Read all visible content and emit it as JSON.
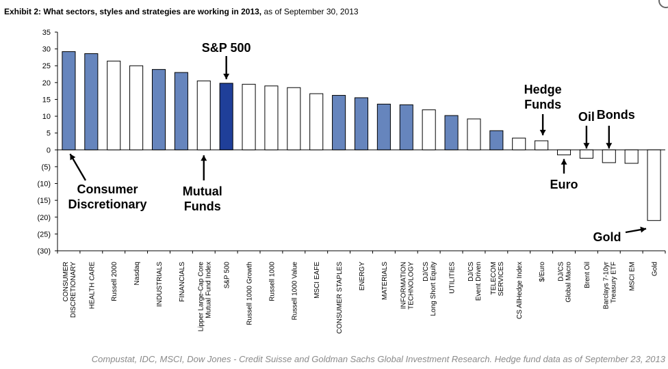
{
  "title": {
    "bold": "Exhibit 2: What sectors, styles and strategies are working in 2013,",
    "normal": " as of September 30, 2013"
  },
  "source": "Compustat, IDC, MSCI, Dow Jones - Credit Suisse and Goldman Sachs Global Investment Research. Hedge fund data as of September 23, 2013",
  "chart_data": {
    "type": "bar",
    "ylim": [
      -30,
      35
    ],
    "yticks": [
      35,
      30,
      25,
      20,
      15,
      10,
      5,
      0,
      -5,
      -10,
      -15,
      -20,
      -25,
      -30
    ],
    "ytick_labels": [
      "35",
      "30",
      "25",
      "20",
      "15",
      "10",
      "5",
      "0",
      "(5)",
      "(10)",
      "(15)",
      "(20)",
      "(25)",
      "(30)"
    ],
    "grid": false,
    "colors": {
      "sector": "#6685bd",
      "sp500": "#1f3f99",
      "other": "#ffffff",
      "stroke": "#000000"
    },
    "categories": [
      "CONSUMER\nDISCRETIONARY",
      "HEALTH CARE",
      "Russell 2000",
      "Nasdaq",
      "INDUSTRIALS",
      "FINANCIALS",
      "Lipper Large-Cap Core\nMutual Fund Index",
      "S&P 500",
      "Russell 1000 Growth",
      "Russell 1000",
      "Russell 1000 Value",
      "MSCI EAFE",
      "CONSUMER STAPLES",
      "ENERGY",
      "MATERIALS",
      "INFORMATION\nTECHNOLOGY",
      "DJ/CS\nLong Short Equity",
      "UTILITIES",
      "DJ/CS\nEvent Driven",
      "TELECOM\nSERVICES",
      "CS AllHedge Index",
      "$/Euro",
      "DJ/CS\nGlobal Macro",
      "Brent Oil",
      "Barclays 7-10yr\nTreasury ETF",
      "MSCI EM",
      "Gold"
    ],
    "values": [
      29.2,
      28.6,
      26.4,
      25.0,
      23.9,
      23.0,
      20.5,
      19.8,
      19.5,
      19.0,
      18.5,
      16.7,
      16.2,
      15.5,
      13.6,
      13.4,
      11.9,
      10.2,
      9.2,
      5.7,
      3.5,
      2.7,
      -1.5,
      -2.5,
      -3.8,
      -4.0,
      -21.0
    ],
    "kinds": [
      "sector",
      "sector",
      "other",
      "other",
      "sector",
      "sector",
      "other",
      "sp500",
      "other",
      "other",
      "other",
      "other",
      "sector",
      "sector",
      "sector",
      "sector",
      "other",
      "sector",
      "other",
      "sector",
      "other",
      "other",
      "other",
      "other",
      "other",
      "other",
      "other"
    ],
    "annotations": [
      {
        "lines": [
          "S&P 500"
        ],
        "target": 7
      },
      {
        "lines": [
          "Consumer",
          "Discretionary"
        ],
        "target": 0
      },
      {
        "lines": [
          "Mutual",
          "Funds"
        ],
        "target": 6
      },
      {
        "lines": [
          "Hedge",
          "Funds"
        ],
        "target": 21
      },
      {
        "lines": [
          "Oil"
        ],
        "target": 23
      },
      {
        "lines": [
          "Bonds"
        ],
        "target": 24
      },
      {
        "lines": [
          "Euro"
        ],
        "target": 22
      },
      {
        "lines": [
          "Gold"
        ],
        "target": 26
      }
    ]
  }
}
